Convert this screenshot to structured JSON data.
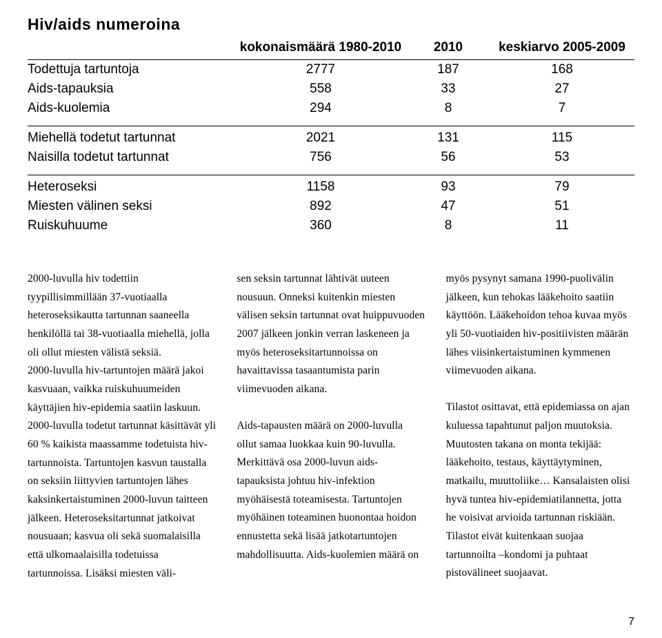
{
  "table": {
    "title": "Hiv/aids numeroina",
    "headers": {
      "col1": "kokonaismäärä 1980-2010",
      "col2": "2010",
      "col3": "keskiarvo 2005-2009"
    },
    "groups": [
      [
        {
          "label": "Todettuja tartuntoja",
          "c1": "2777",
          "c2": "187",
          "c3": "168"
        },
        {
          "label": "Aids-tapauksia",
          "c1": "558",
          "c2": "33",
          "c3": "27"
        },
        {
          "label": "Aids-kuolemia",
          "c1": "294",
          "c2": "8",
          "c3": "7"
        }
      ],
      [
        {
          "label": "Miehellä todetut tartunnat",
          "c1": "2021",
          "c2": "131",
          "c3": "115"
        },
        {
          "label": "Naisilla todetut tartunnat",
          "c1": "756",
          "c2": "56",
          "c3": "53"
        }
      ],
      [
        {
          "label": "Heteroseksi",
          "c1": "1158",
          "c2": "93",
          "c3": "79"
        },
        {
          "label": "Miesten välinen seksi",
          "c1": "892",
          "c2": "47",
          "c3": "51"
        },
        {
          "label": "Ruiskuhuume",
          "c1": "360",
          "c2": "8",
          "c3": "11"
        }
      ]
    ],
    "style": {
      "font_family": "Arial, Helvetica, sans-serif",
      "title_fontsize": 23,
      "cell_fontsize": 19,
      "border_color": "#000000",
      "text_color": "#000000",
      "background": "#ffffff"
    }
  },
  "body": {
    "p1": "2000-luvulla hiv todettiin tyypillisimmillään 37-vuotiaalla heteroseksikautta tartunnan saaneella henkilöllä tai 38-vuotiaalla miehellä, jolla oli ollut miesten välistä seksiä.",
    "p2": "2000-luvulla hiv-tartuntojen määrä jakoi kasvuaan, vaikka ruiskuhuumeiden käyttäjien hiv-epidemia saatiin laskuun. 2000-luvulla todetut tartunnat käsittävät yli 60 % kaikista maassamme todetuista hiv-tartunnoista. Tartuntojen kasvun taustalla on seksiin liittyvien tartuntojen lähes kaksinkertaistuminen 2000-luvun taitteen jälkeen. Heteroseksitartunnat jatkoivat nousuaan; kasvua oli sekä suomalaisilla että ulkomaalaisilla todetuissa tartunnoissa. Lisäksi miesten väli-",
    "p3": "sen seksin tartunnat lähtivät uuteen nousuun. Onneksi kuitenkin miesten välisen seksin tartunnat ovat huippuvuoden 2007 jälkeen jonkin verran laskeneen ja myös heteroseksitartunnoissa on havaittavissa tasaantumista parin viimevuoden aikana.",
    "p4": "Aids-tapausten määrä on 2000-luvulla ollut samaa luokkaa kuin 90-luvulla. Merkittävä osa 2000-luvun aids-tapauksista johtuu hiv-infektion myöhäisestä toteamisesta. Tartuntojen myöhäinen toteaminen huonontaa hoidon ennustetta sekä lisää jatkotartuntojen mahdollisuutta. Aids-kuolemien määrä on myös pysynyt samana 1990-puolivälin jälkeen, kun tehokas lääkehoito saatiin",
    "p5": "käyttöön. Lääkehoidon tehoa kuvaa myös yli 50-vuotiaiden hiv-positiivisten määrän lähes viisinkertaistuminen kymmenen viimevuoden aikana.",
    "p6": "Tilastot osittavat, että epidemiassa on ajan kuluessa tapahtunut paljon muutoksia. Muutosten takana on monta tekijää: lääkehoito, testaus, käyttäytyminen, matkailu, muuttoliike… Kansalaisten olisi hyvä tuntea hiv-epidemiatilannetta, jotta he voisivat arvioida tartunnan riskiään. Tilastot eivät kuitenkaan suojaa tartunnoilta –kondomi ja puhtaat pistovälineet suojaavat.",
    "style": {
      "font_family": "Georgia, serif",
      "fontsize": 15.5,
      "line_height": 1.72,
      "columns": 3,
      "column_gap": 30,
      "text_color": "#000000"
    }
  },
  "pageNumber": "7"
}
